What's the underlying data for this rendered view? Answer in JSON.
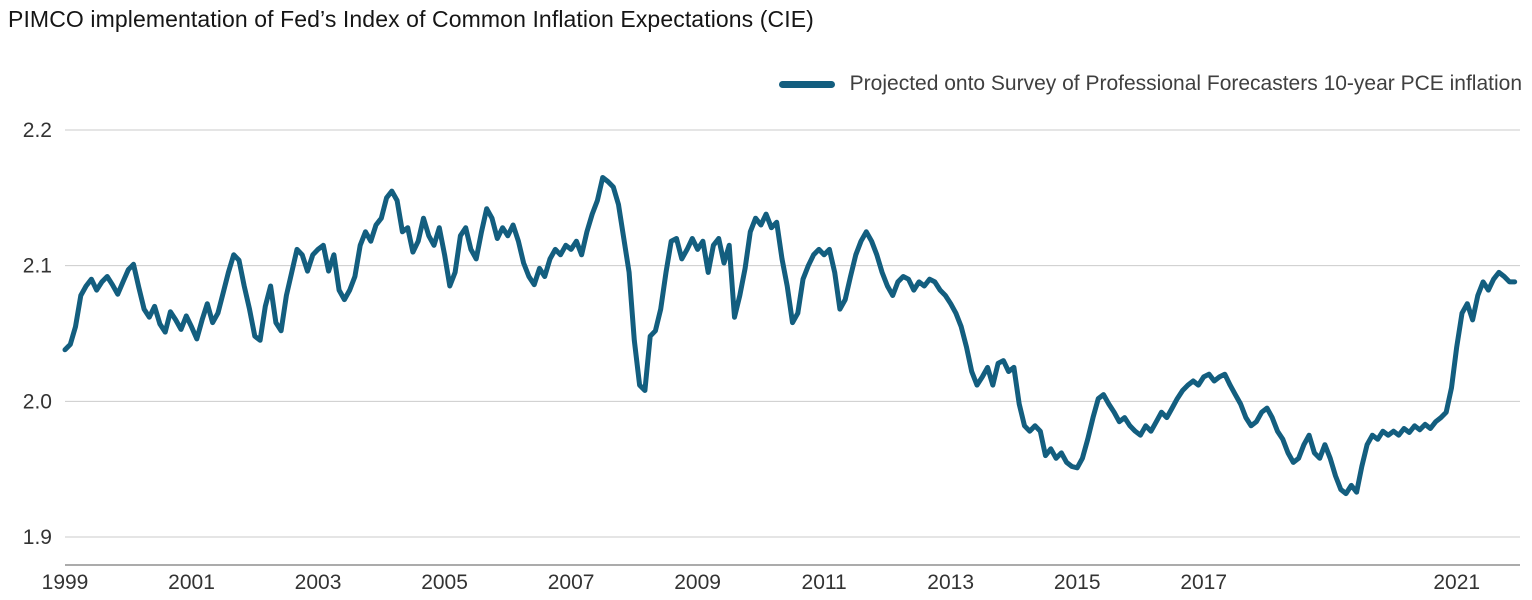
{
  "chart": {
    "title": "PIMCO implementation of Fed’s Index of Common Inflation Expectations (CIE)",
    "legend_label": "Projected onto Survey of Professional Forecasters 10-year PCE inflation",
    "line_color": "#135E7F",
    "gridline_color": "#cbcbcb",
    "axis_line_color": "#8f8f8f",
    "tick_label_color": "#333333"
  },
  "chart_data": {
    "type": "line",
    "title": "PIMCO implementation of Fed’s Index of Common Inflation Expectations (CIE)",
    "xlabel": "",
    "ylabel": "",
    "grid": "horizontal",
    "legend_position": "top-right",
    "ylim": [
      1.88,
      2.22
    ],
    "yticks": [
      2.2,
      2.1,
      2.0,
      1.9
    ],
    "xticks": [
      "1999",
      "2001",
      "2003",
      "2005",
      "2007",
      "2009",
      "2011",
      "2013",
      "2015",
      "2017",
      "2021"
    ],
    "x_domain_years": [
      1999,
      2022
    ],
    "series": [
      {
        "name": "Projected onto Survey of Professional Forecasters 10-year PCE inflation",
        "color": "#135E7F",
        "x_start_year": 1999,
        "x_frequency": "monthly",
        "values": [
          2.038,
          2.042,
          2.055,
          2.078,
          2.085,
          2.09,
          2.082,
          2.088,
          2.092,
          2.086,
          2.079,
          2.088,
          2.097,
          2.101,
          2.084,
          2.068,
          2.062,
          2.07,
          2.057,
          2.051,
          2.066,
          2.06,
          2.053,
          2.063,
          2.055,
          2.046,
          2.06,
          2.072,
          2.058,
          2.065,
          2.08,
          2.095,
          2.108,
          2.104,
          2.085,
          2.068,
          2.048,
          2.045,
          2.07,
          2.085,
          2.058,
          2.052,
          2.078,
          2.095,
          2.112,
          2.108,
          2.096,
          2.108,
          2.112,
          2.115,
          2.096,
          2.108,
          2.082,
          2.075,
          2.082,
          2.092,
          2.115,
          2.125,
          2.118,
          2.13,
          2.135,
          2.15,
          2.155,
          2.148,
          2.125,
          2.128,
          2.11,
          2.118,
          2.135,
          2.122,
          2.115,
          2.128,
          2.108,
          2.085,
          2.095,
          2.122,
          2.128,
          2.112,
          2.105,
          2.125,
          2.142,
          2.135,
          2.12,
          2.128,
          2.122,
          2.13,
          2.118,
          2.102,
          2.092,
          2.086,
          2.098,
          2.092,
          2.105,
          2.112,
          2.108,
          2.115,
          2.112,
          2.118,
          2.108,
          2.125,
          2.138,
          2.148,
          2.165,
          2.162,
          2.158,
          2.145,
          2.12,
          2.095,
          2.045,
          2.012,
          2.008,
          2.048,
          2.052,
          2.068,
          2.095,
          2.118,
          2.12,
          2.105,
          2.112,
          2.12,
          2.112,
          2.118,
          2.095,
          2.115,
          2.12,
          2.102,
          2.115,
          2.062,
          2.078,
          2.098,
          2.125,
          2.135,
          2.13,
          2.138,
          2.128,
          2.132,
          2.105,
          2.085,
          2.058,
          2.065,
          2.09,
          2.1,
          2.108,
          2.112,
          2.108,
          2.112,
          2.095,
          2.068,
          2.075,
          2.092,
          2.108,
          2.118,
          2.125,
          2.118,
          2.108,
          2.095,
          2.085,
          2.078,
          2.088,
          2.092,
          2.09,
          2.082,
          2.088,
          2.085,
          2.09,
          2.088,
          2.082,
          2.078,
          2.072,
          2.065,
          2.055,
          2.04,
          2.022,
          2.012,
          2.018,
          2.025,
          2.012,
          2.028,
          2.03,
          2.022,
          2.025,
          1.998,
          1.982,
          1.978,
          1.982,
          1.978,
          1.96,
          1.965,
          1.958,
          1.962,
          1.955,
          1.952,
          1.951,
          1.958,
          1.972,
          1.988,
          2.002,
          2.005,
          1.998,
          1.992,
          1.985,
          1.988,
          1.982,
          1.978,
          1.975,
          1.982,
          1.978,
          1.985,
          1.992,
          1.988,
          1.995,
          2.002,
          2.008,
          2.012,
          2.015,
          2.012,
          2.018,
          2.02,
          2.015,
          2.018,
          2.02,
          2.012,
          2.005,
          1.998,
          1.988,
          1.982,
          1.985,
          1.992,
          1.995,
          1.988,
          1.978,
          1.972,
          1.962,
          1.955,
          1.958,
          1.968,
          1.975,
          1.962,
          1.958,
          1.968,
          1.958,
          1.945,
          1.935,
          1.932,
          1.938,
          1.933,
          1.952,
          1.968,
          1.975,
          1.972,
          1.978,
          1.975,
          1.978,
          1.975,
          1.98,
          1.977,
          1.982,
          1.979,
          1.983,
          1.98,
          1.985,
          1.988,
          1.992,
          2.01,
          2.04,
          2.065,
          2.072,
          2.06,
          2.078,
          2.088,
          2.082,
          2.09,
          2.095,
          2.092,
          2.088,
          2.088
        ]
      }
    ]
  }
}
